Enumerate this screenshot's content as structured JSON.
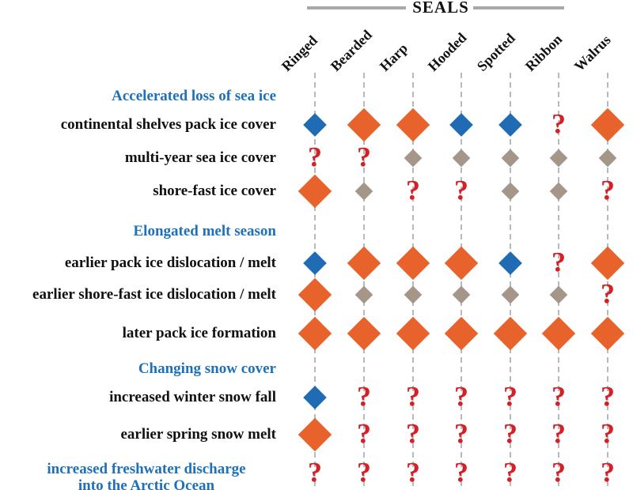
{
  "figure_title": "SEALS",
  "colors": {
    "orange_diamond": "#e8632b",
    "blue_diamond": "#1f6cb4",
    "gray_diamond": "#a5968a",
    "question_mark": "#d42027",
    "section_title_text": "#1e70b8",
    "row_label_text": "#111111",
    "header_rule": "#a9a9a9",
    "guideline": "#b9b9b9"
  },
  "chart_data": {
    "type": "heatmap",
    "title": "SEALS",
    "columns": [
      "Ringed",
      "Bearded",
      "Harp",
      "Hooded",
      "Spotted",
      "Ribbon",
      "Walrus"
    ],
    "cell_symbols": {
      "orange": "large orange diamond",
      "blue": "medium blue diamond",
      "gray": "small gray diamond",
      "?": "red question mark (unknown)"
    },
    "legend_position": "none",
    "sections": [
      {
        "title": "Accelerated loss of sea ice",
        "rows": [
          {
            "label": "continental shelves pack ice cover",
            "cells": [
              "blue",
              "orange",
              "orange",
              "blue",
              "blue",
              "?",
              "orange"
            ]
          },
          {
            "label": "multi-year sea ice cover",
            "cells": [
              "?",
              "?",
              "gray",
              "gray",
              "gray",
              "gray",
              "gray"
            ]
          },
          {
            "label": "shore-fast ice cover",
            "cells": [
              "orange",
              "gray",
              "?",
              "?",
              "gray",
              "gray",
              "?"
            ]
          }
        ]
      },
      {
        "title": "Elongated melt season",
        "rows": [
          {
            "label": "earlier pack ice dislocation / melt",
            "cells": [
              "blue",
              "orange",
              "orange",
              "orange",
              "blue",
              "?",
              "orange"
            ]
          },
          {
            "label": "earlier shore-fast ice dislocation / melt",
            "cells": [
              "orange",
              "gray",
              "gray",
              "gray",
              "gray",
              "gray",
              "?"
            ]
          },
          {
            "label": "later pack ice formation",
            "cells": [
              "orange",
              "orange",
              "orange",
              "orange",
              "orange",
              "orange",
              "orange"
            ]
          }
        ]
      },
      {
        "title": "Changing snow cover",
        "rows": [
          {
            "label": "increased winter snow fall",
            "cells": [
              "blue",
              "?",
              "?",
              "?",
              "?",
              "?",
              "?"
            ]
          },
          {
            "label": "earlier spring snow melt",
            "cells": [
              "orange",
              "?",
              "?",
              "?",
              "?",
              "?",
              "?"
            ]
          }
        ]
      },
      {
        "title": "increased freshwater discharge into the Arctic Ocean",
        "title_lines": [
          "increased freshwater discharge",
          "into the Arctic Ocean"
        ],
        "rows": [
          {
            "label": "",
            "cells": [
              "?",
              "?",
              "?",
              "?",
              "?",
              "?",
              "?"
            ]
          }
        ]
      }
    ]
  }
}
